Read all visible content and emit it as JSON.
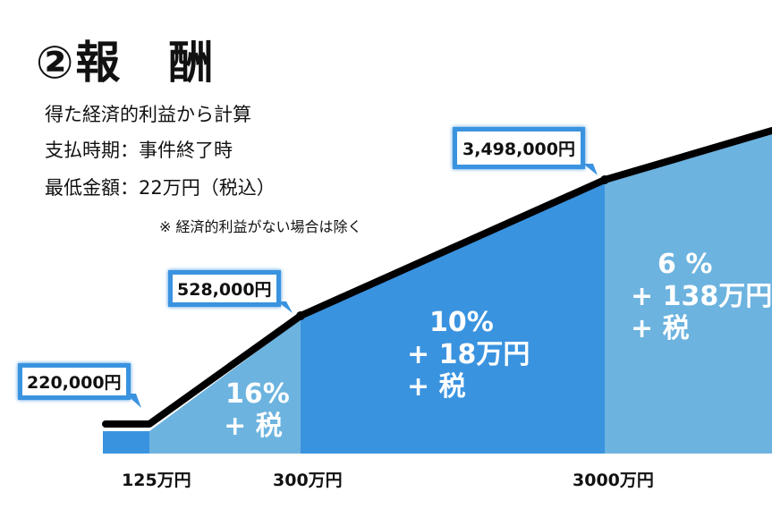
{
  "title": "②報　酬",
  "info_lines": [
    "得た経済的利益から計算",
    "支払時期：事件終了時",
    "最低金額：22万円（税込）"
  ],
  "note": "※ 経済的利益がない場合は除く",
  "callouts": [
    "220,000円",
    "528,000円",
    "3,498,000円"
  ],
  "tiers": [
    {
      "rate": "16%",
      "line2": "+ 税"
    },
    {
      "rate": "10%",
      "line2": "+ 18万円",
      "line3": "+ 税"
    },
    {
      "rate": "6 %",
      "line2": "+ 138万円",
      "line3": "+ 税"
    }
  ],
  "x_ticks": [
    "125万円",
    "300万円",
    "3000万円"
  ],
  "colors": {
    "dark_blue": "#3a93df",
    "light_blue": "#6cb3df",
    "line": "#000000"
  }
}
